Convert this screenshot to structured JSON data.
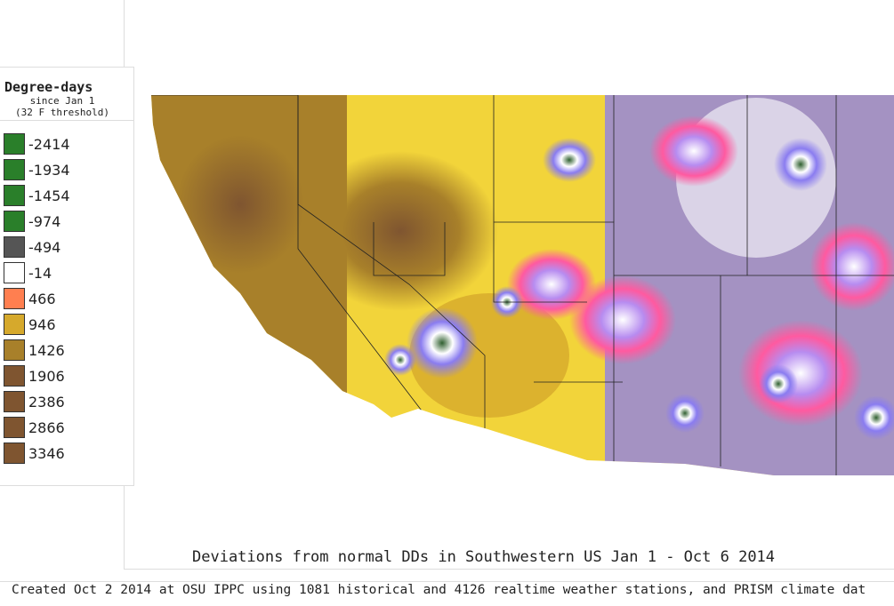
{
  "legend": {
    "title": "Degree-days",
    "subtitle1": "since Jan 1",
    "subtitle2": "(32 F threshold)",
    "items": [
      {
        "label": "-2414",
        "color": "#2a7f2a"
      },
      {
        "label": "-1934",
        "color": "#2a7f2a"
      },
      {
        "label": "-1454",
        "color": "#2a7f2a"
      },
      {
        "label": "-974",
        "color": "#2a7f2a"
      },
      {
        "label": "-494",
        "color": "#555555"
      },
      {
        "label": "-14",
        "color": "#ffffff"
      },
      {
        "label": "466",
        "color": "#ff7f50"
      },
      {
        "label": "946",
        "color": "#d6a92c"
      },
      {
        "label": "1426",
        "color": "#a8802a"
      },
      {
        "label": "1906",
        "color": "#7f5530"
      },
      {
        "label": "2386",
        "color": "#7f5530"
      },
      {
        "label": "2866",
        "color": "#7f5530"
      },
      {
        "label": "3346",
        "color": "#7f5530"
      }
    ]
  },
  "map_title": "Deviations from normal DDs in Southwestern US Jan 1 - Oct 6 2014",
  "footer": "Created Oct 2 2014 at OSU IPPC using 1081 historical and 4126 realtime weather stations, and PRISM climate dat"
}
